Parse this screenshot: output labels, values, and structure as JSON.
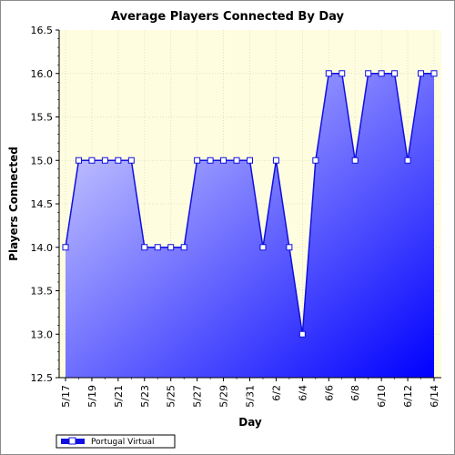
{
  "chart_data": {
    "type": "area",
    "title": "Average Players Connected By Day",
    "xlabel": "Day",
    "ylabel": "Players Connected",
    "ylim": [
      12.5,
      16.5
    ],
    "yticks": [
      "12.5",
      "13.0",
      "13.5",
      "14.0",
      "14.5",
      "15.0",
      "15.5",
      "16.0",
      "16.5"
    ],
    "x": [
      "5/17",
      "5/18",
      "5/19",
      "5/20",
      "5/21",
      "5/22",
      "5/23",
      "5/24",
      "5/25",
      "5/26",
      "5/27",
      "5/28",
      "5/29",
      "5/30",
      "5/31",
      "6/1",
      "6/2",
      "6/3",
      "6/4",
      "6/5",
      "6/6",
      "6/7",
      "6/8",
      "6/9",
      "6/10",
      "6/11",
      "6/12",
      "6/13",
      "6/14"
    ],
    "xtick_labels": [
      "5/17",
      "5/19",
      "5/21",
      "5/23",
      "5/25",
      "5/27",
      "5/29",
      "5/31",
      "6/2",
      "6/4",
      "6/6",
      "6/8",
      "6/10",
      "6/12",
      "6/14"
    ],
    "series": [
      {
        "name": "Portugal Virtual",
        "values": [
          14.0,
          15.0,
          15.0,
          15.0,
          15.0,
          15.0,
          14.0,
          14.0,
          14.0,
          14.0,
          15.0,
          15.0,
          15.0,
          15.0,
          15.0,
          14.0,
          15.0,
          14.0,
          13.0,
          15.0,
          16.0,
          16.0,
          15.0,
          16.0,
          16.0,
          16.0,
          15.0,
          16.0,
          16.0
        ]
      }
    ],
    "grid": true,
    "legend": "bottom-left",
    "colors": {
      "plot_background": "#fffde0",
      "line": "#1010e0",
      "fill_light": "#d8d8ff",
      "fill_dark": "#0000ff",
      "marker_fill": "#ffffff"
    }
  }
}
